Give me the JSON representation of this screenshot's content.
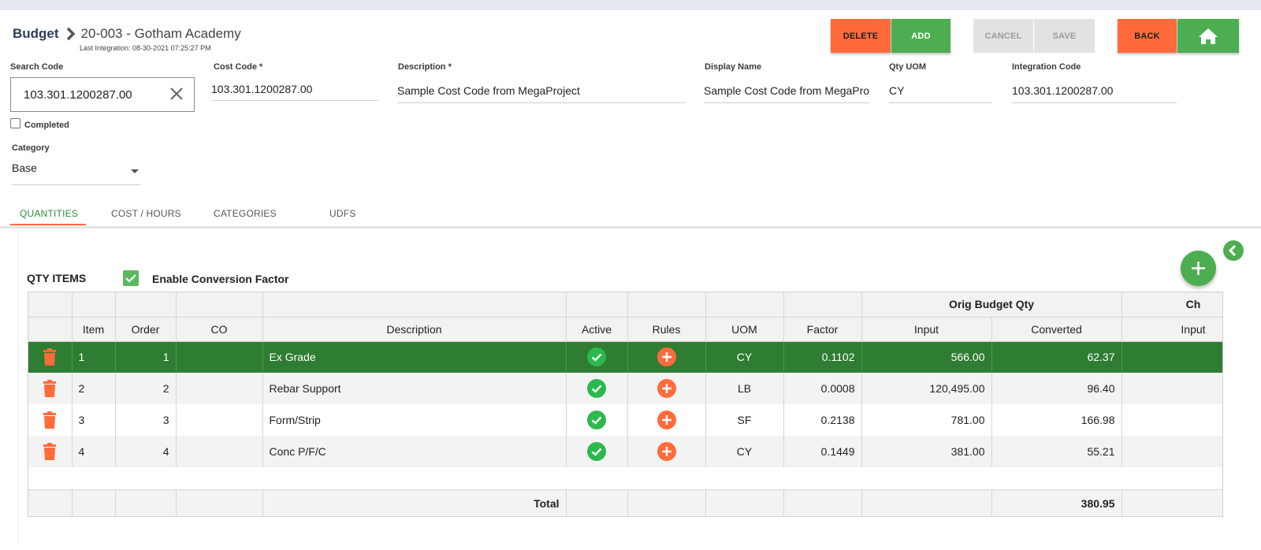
{
  "breadcrumb": {
    "root": "Budget",
    "title": "20-003 - Gotham Academy",
    "last_integration": "Last Integration: 08-30-2021 07:25:27 PM"
  },
  "toolbar": {
    "delete": "DELETE",
    "add": "ADD",
    "cancel": "CANCEL",
    "save": "SAVE",
    "back": "BACK"
  },
  "colors": {
    "orange": "#ff6b3b",
    "green": "#4cae50",
    "selected_row": "#2e7d32",
    "active_tab": "#2e8b3b"
  },
  "form": {
    "search_code_label": "Search Code",
    "search_code_value": "103.301.1200287.00",
    "cost_code_label": "Cost Code *",
    "cost_code_value": "103.301.1200287.00",
    "description_label": "Description *",
    "description_value": "Sample Cost Code from MegaProject",
    "display_name_label": "Display Name",
    "display_name_value": "Sample Cost Code from MegaProject",
    "qty_uom_label": "Qty UOM",
    "qty_uom_value": "CY",
    "integration_code_label": "Integration Code",
    "integration_code_value": "103.301.1200287.00",
    "completed_label": "Completed",
    "category_label": "Category",
    "category_value": "Base"
  },
  "tabs": [
    "QUANTITIES",
    "COST / HOURS",
    "CATEGORIES",
    "UDFS"
  ],
  "qty_section": {
    "title": "QTY ITEMS",
    "conversion_label": "Enable Conversion Factor"
  },
  "grid": {
    "group_headers": {
      "orig_budget_qty": "Orig Budget Qty",
      "change": "Ch"
    },
    "columns": {
      "item": "Item",
      "order": "Order",
      "co": "CO",
      "description": "Description",
      "active": "Active",
      "rules": "Rules",
      "uom": "UOM",
      "factor": "Factor",
      "input": "Input",
      "converted": "Converted",
      "input2": "Input"
    },
    "rows": [
      {
        "item": "1",
        "order": "1",
        "co": "",
        "description": "Ex Grade",
        "uom": "CY",
        "factor": "0.1102",
        "input": "566.00",
        "converted": "62.37"
      },
      {
        "item": "2",
        "order": "2",
        "co": "",
        "description": "Rebar Support",
        "uom": "LB",
        "factor": "0.0008",
        "input": "120,495.00",
        "converted": "96.40"
      },
      {
        "item": "3",
        "order": "3",
        "co": "",
        "description": "Form/Strip",
        "uom": "SF",
        "factor": "0.2138",
        "input": "781.00",
        "converted": "166.98"
      },
      {
        "item": "4",
        "order": "4",
        "co": "",
        "description": "Conc P/F/C",
        "uom": "CY",
        "factor": "0.1449",
        "input": "381.00",
        "converted": "55.21"
      }
    ],
    "total_label": "Total",
    "total_converted": "380.95"
  }
}
